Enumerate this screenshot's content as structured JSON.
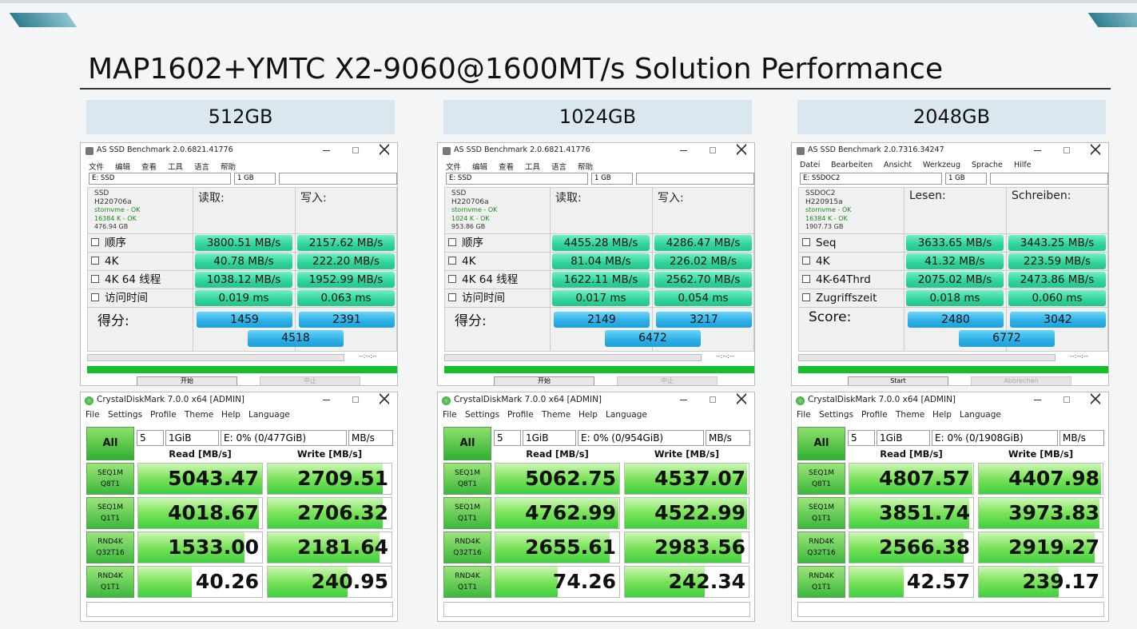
{
  "title": "MAP1602+YMTC X2-9060@1600MT/s Solution Performance",
  "panels": [
    {
      "capacity": "512GB",
      "as_ssd": {
        "window_title": "AS SSD Benchmark 2.0.6821.41776",
        "menu": [
          "文件",
          "编辑",
          "查看",
          "工具",
          "语言",
          "帮助"
        ],
        "drive": "E: SSD",
        "size": "1 GB",
        "info": [
          "SSD",
          "H220706a",
          "stornvme - OK",
          "16384 K - OK",
          "476.94 GB"
        ],
        "read_header": "读取:",
        "write_header": "写入:",
        "rows": [
          {
            "label": "顺序",
            "read": "3800.51 MB/s",
            "write": "2157.62 MB/s"
          },
          {
            "label": "4K",
            "read": "40.78 MB/s",
            "write": "222.20 MB/s"
          },
          {
            "label": "4K 64 线程",
            "read": "1038.12 MB/s",
            "write": "1952.99 MB/s"
          },
          {
            "label": "访问时间",
            "read": "0.019 ms",
            "write": "0.063 ms"
          }
        ],
        "score_label": "得分:",
        "score_read": "1459",
        "score_write": "2391",
        "score_total": "4518",
        "timer": "--:--:--",
        "start": "开始",
        "abort": "中止"
      },
      "cdm": {
        "window_title": "CrystalDiskMark 7.0.0 x64 [ADMIN]",
        "menu": [
          "File",
          "Settings",
          "Profile",
          "Theme",
          "Help",
          "Language"
        ],
        "all": "All",
        "count": "5",
        "size": "1GiB",
        "drive": "E: 0% (0/477GiB)",
        "unit": "MB/s",
        "read_header": "Read [MB/s]",
        "write_header": "Write [MB/s]",
        "rows": [
          {
            "test": "SEQ1M",
            "queue": "Q8T1",
            "read": "5043.47",
            "write": "2709.51"
          },
          {
            "test": "SEQ1M",
            "queue": "Q1T1",
            "read": "4018.67",
            "write": "2706.32"
          },
          {
            "test": "RND4K",
            "queue": "Q32T16",
            "read": "1533.00",
            "write": "2181.64"
          },
          {
            "test": "RND4K",
            "queue": "Q1T1",
            "read": "40.26",
            "write": "240.95"
          }
        ]
      }
    },
    {
      "capacity": "1024GB",
      "as_ssd": {
        "window_title": "AS SSD Benchmark 2.0.6821.41776",
        "menu": [
          "文件",
          "编辑",
          "查看",
          "工具",
          "语言",
          "帮助"
        ],
        "drive": "E: SSD",
        "size": "1 GB",
        "info": [
          "SSD",
          "H220706a",
          "stornvme - OK",
          "1024 K - OK",
          "953.86 GB"
        ],
        "read_header": "读取:",
        "write_header": "写入:",
        "rows": [
          {
            "label": "顺序",
            "read": "4455.28 MB/s",
            "write": "4286.47 MB/s"
          },
          {
            "label": "4K",
            "read": "81.04 MB/s",
            "write": "226.02 MB/s"
          },
          {
            "label": "4K 64 线程",
            "read": "1622.11 MB/s",
            "write": "2562.70 MB/s"
          },
          {
            "label": "访问时间",
            "read": "0.017 ms",
            "write": "0.054 ms"
          }
        ],
        "score_label": "得分:",
        "score_read": "2149",
        "score_write": "3217",
        "score_total": "6472",
        "timer": "--:--:--",
        "start": "开始",
        "abort": "中止"
      },
      "cdm": {
        "window_title": "CrystalDiskMark 7.0.0 x64 [ADMIN]",
        "menu": [
          "File",
          "Settings",
          "Profile",
          "Theme",
          "Help",
          "Language"
        ],
        "all": "All",
        "count": "5",
        "size": "1GiB",
        "drive": "E: 0% (0/954GiB)",
        "unit": "MB/s",
        "read_header": "Read [MB/s]",
        "write_header": "Write [MB/s]",
        "rows": [
          {
            "test": "SEQ1M",
            "queue": "Q8T1",
            "read": "5062.75",
            "write": "4537.07"
          },
          {
            "test": "SEQ1M",
            "queue": "Q1T1",
            "read": "4762.99",
            "write": "4522.99"
          },
          {
            "test": "RND4K",
            "queue": "Q32T16",
            "read": "2655.61",
            "write": "2983.56"
          },
          {
            "test": "RND4K",
            "queue": "Q1T1",
            "read": "74.26",
            "write": "242.34"
          }
        ]
      }
    },
    {
      "capacity": "2048GB",
      "as_ssd": {
        "window_title": "AS SSD Benchmark 2.0.7316.34247",
        "menu": [
          "Datei",
          "Bearbeiten",
          "Ansicht",
          "Werkzeug",
          "Sprache",
          "Hilfe"
        ],
        "drive": "E: SSDOC2",
        "size": "1 GB",
        "info": [
          "SSDOC2",
          "H220915a",
          "stornvme - OK",
          "16384 K - OK",
          "1907.73 GB"
        ],
        "read_header": "Lesen:",
        "write_header": "Schreiben:",
        "rows": [
          {
            "label": "Seq",
            "read": "3633.65 MB/s",
            "write": "3443.25 MB/s"
          },
          {
            "label": "4K",
            "read": "41.32 MB/s",
            "write": "223.59 MB/s"
          },
          {
            "label": "4K-64Thrd",
            "read": "2075.02 MB/s",
            "write": "2473.86 MB/s"
          },
          {
            "label": "Zugriffszeit",
            "read": "0.018 ms",
            "write": "0.060 ms"
          }
        ],
        "score_label": "Score:",
        "score_read": "2480",
        "score_write": "3042",
        "score_total": "6772",
        "timer": "--:--:--",
        "start": "Start",
        "abort": "Abbrechen"
      },
      "cdm": {
        "window_title": "CrystalDiskMark 7.0.0 x64 [ADMIN]",
        "menu": [
          "File",
          "Settings",
          "Profile",
          "Theme",
          "Help",
          "Language"
        ],
        "all": "All",
        "count": "5",
        "size": "1GiB",
        "drive": "E: 0% (0/1908GiB)",
        "unit": "MB/s",
        "read_header": "Read [MB/s]",
        "write_header": "Write [MB/s]",
        "rows": [
          {
            "test": "SEQ1M",
            "queue": "Q8T1",
            "read": "4807.57",
            "write": "4407.98"
          },
          {
            "test": "SEQ1M",
            "queue": "Q1T1",
            "read": "3851.74",
            "write": "3973.83"
          },
          {
            "test": "RND4K",
            "queue": "Q32T16",
            "read": "2566.38",
            "write": "2919.27"
          },
          {
            "test": "RND4K",
            "queue": "Q1T1",
            "read": "42.57",
            "write": "239.17"
          }
        ]
      }
    }
  ]
}
